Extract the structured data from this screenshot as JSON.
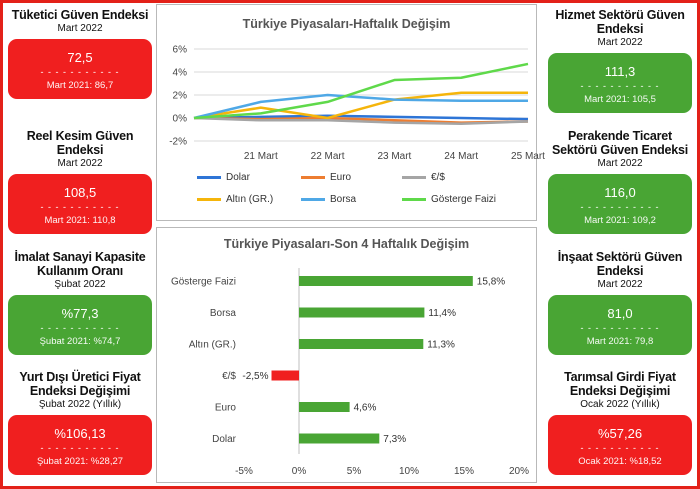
{
  "left_indicators": [
    {
      "title": "Tüketici Güven Endeksi",
      "period": "Mart 2022",
      "value": "72,5",
      "prev": "Mart 2021: 86,7",
      "color": "#f01f1f"
    },
    {
      "title": "Reel Kesim Güven Endeksi",
      "period": "Mart 2022",
      "value": "108,5",
      "prev": "Mart 2021: 110,8",
      "color": "#f01f1f"
    },
    {
      "title": "İmalat Sanayi Kapasite Kullanım Oranı",
      "period": "Şubat 2022",
      "value": "%77,3",
      "prev": "Şubat 2021: %74,7",
      "color": "#49a534"
    },
    {
      "title": "Yurt Dışı Üretici Fiyat Endeksi Değişimi",
      "period": "Şubat 2022 (Yıllık)",
      "value": "%106,13",
      "prev": "Şubat 2021: %28,27",
      "color": "#f01f1f"
    }
  ],
  "right_indicators": [
    {
      "title": "Hizmet Sektörü Güven Endeksi",
      "period": "Mart 2022",
      "value": "111,3",
      "prev": "Mart 2021: 105,5",
      "color": "#49a534"
    },
    {
      "title": "Perakende Ticaret Sektörü Güven Endeksi",
      "period": "Mart 2022",
      "value": "116,0",
      "prev": "Mart 2021: 109,2",
      "color": "#49a534"
    },
    {
      "title": "İnşaat Sektörü Güven Endeksi",
      "period": "Mart 2022",
      "value": "81,0",
      "prev": "Mart 2021: 79,8",
      "color": "#49a534"
    },
    {
      "title": "Tarımsal Girdi Fiyat Endeksi Değişimi",
      "period": "Ocak 2022 (Yıllık)",
      "value": "%57,26",
      "prev": "Ocak 2021: %18,52",
      "color": "#f01f1f"
    }
  ],
  "dash_text": "- - - - - - - - - - -",
  "chart_data": [
    {
      "type": "line",
      "title": "Türkiye Piyasaları-Haftalık Değişim",
      "x": [
        "",
        "21 Mart",
        "22 Mart",
        "23 Mart",
        "24 Mart",
        "25 Mart"
      ],
      "ylim": [
        -2,
        6
      ],
      "yticks": [
        -2,
        0,
        2,
        4,
        6
      ],
      "ytick_labels": [
        "-2%",
        "0%",
        "2%",
        "4%",
        "6%"
      ],
      "grid": true,
      "legend": "bottom",
      "series": [
        {
          "name": "Dolar",
          "color": "#2e75d6",
          "values": [
            0,
            0.1,
            0.2,
            0.1,
            0.0,
            -0.1
          ]
        },
        {
          "name": "Euro",
          "color": "#ed7d31",
          "values": [
            0,
            -0.1,
            0.0,
            -0.2,
            -0.4,
            -0.3
          ]
        },
        {
          "name": "€/$",
          "color": "#a5a5a5",
          "values": [
            0,
            -0.2,
            -0.2,
            -0.4,
            -0.5,
            -0.3
          ]
        },
        {
          "name": "Altın (GR.)",
          "color": "#f5b50b",
          "values": [
            0,
            0.9,
            0.0,
            1.6,
            2.2,
            2.2
          ]
        },
        {
          "name": "Borsa",
          "color": "#4fa8e6",
          "values": [
            0,
            1.4,
            2.0,
            1.6,
            1.5,
            1.5
          ]
        },
        {
          "name": "Gösterge Faizi",
          "color": "#5fd94a",
          "values": [
            0,
            0.4,
            1.4,
            3.3,
            3.5,
            4.7
          ]
        }
      ]
    },
    {
      "type": "bar",
      "orientation": "horizontal",
      "title": "Türkiye Piyasaları-Son 4 Haftalık Değişim",
      "categories": [
        "Gösterge Faizi",
        "Borsa",
        "Altın (GR.)",
        "€/$",
        "Euro",
        "Dolar"
      ],
      "values": [
        15.8,
        11.4,
        11.3,
        -2.5,
        4.6,
        7.3
      ],
      "value_labels": [
        "15,8%",
        "11,4%",
        "11,3%",
        "-2,5%",
        "4,6%",
        "7,3%"
      ],
      "colors": [
        "#49a534",
        "#49a534",
        "#49a534",
        "#f01f1f",
        "#49a534",
        "#49a534"
      ],
      "xlim": [
        -5,
        20
      ],
      "xticks": [
        -5,
        0,
        5,
        10,
        15,
        20
      ],
      "xtick_labels": [
        "-5%",
        "0%",
        "5%",
        "10%",
        "15%",
        "20%"
      ]
    }
  ]
}
